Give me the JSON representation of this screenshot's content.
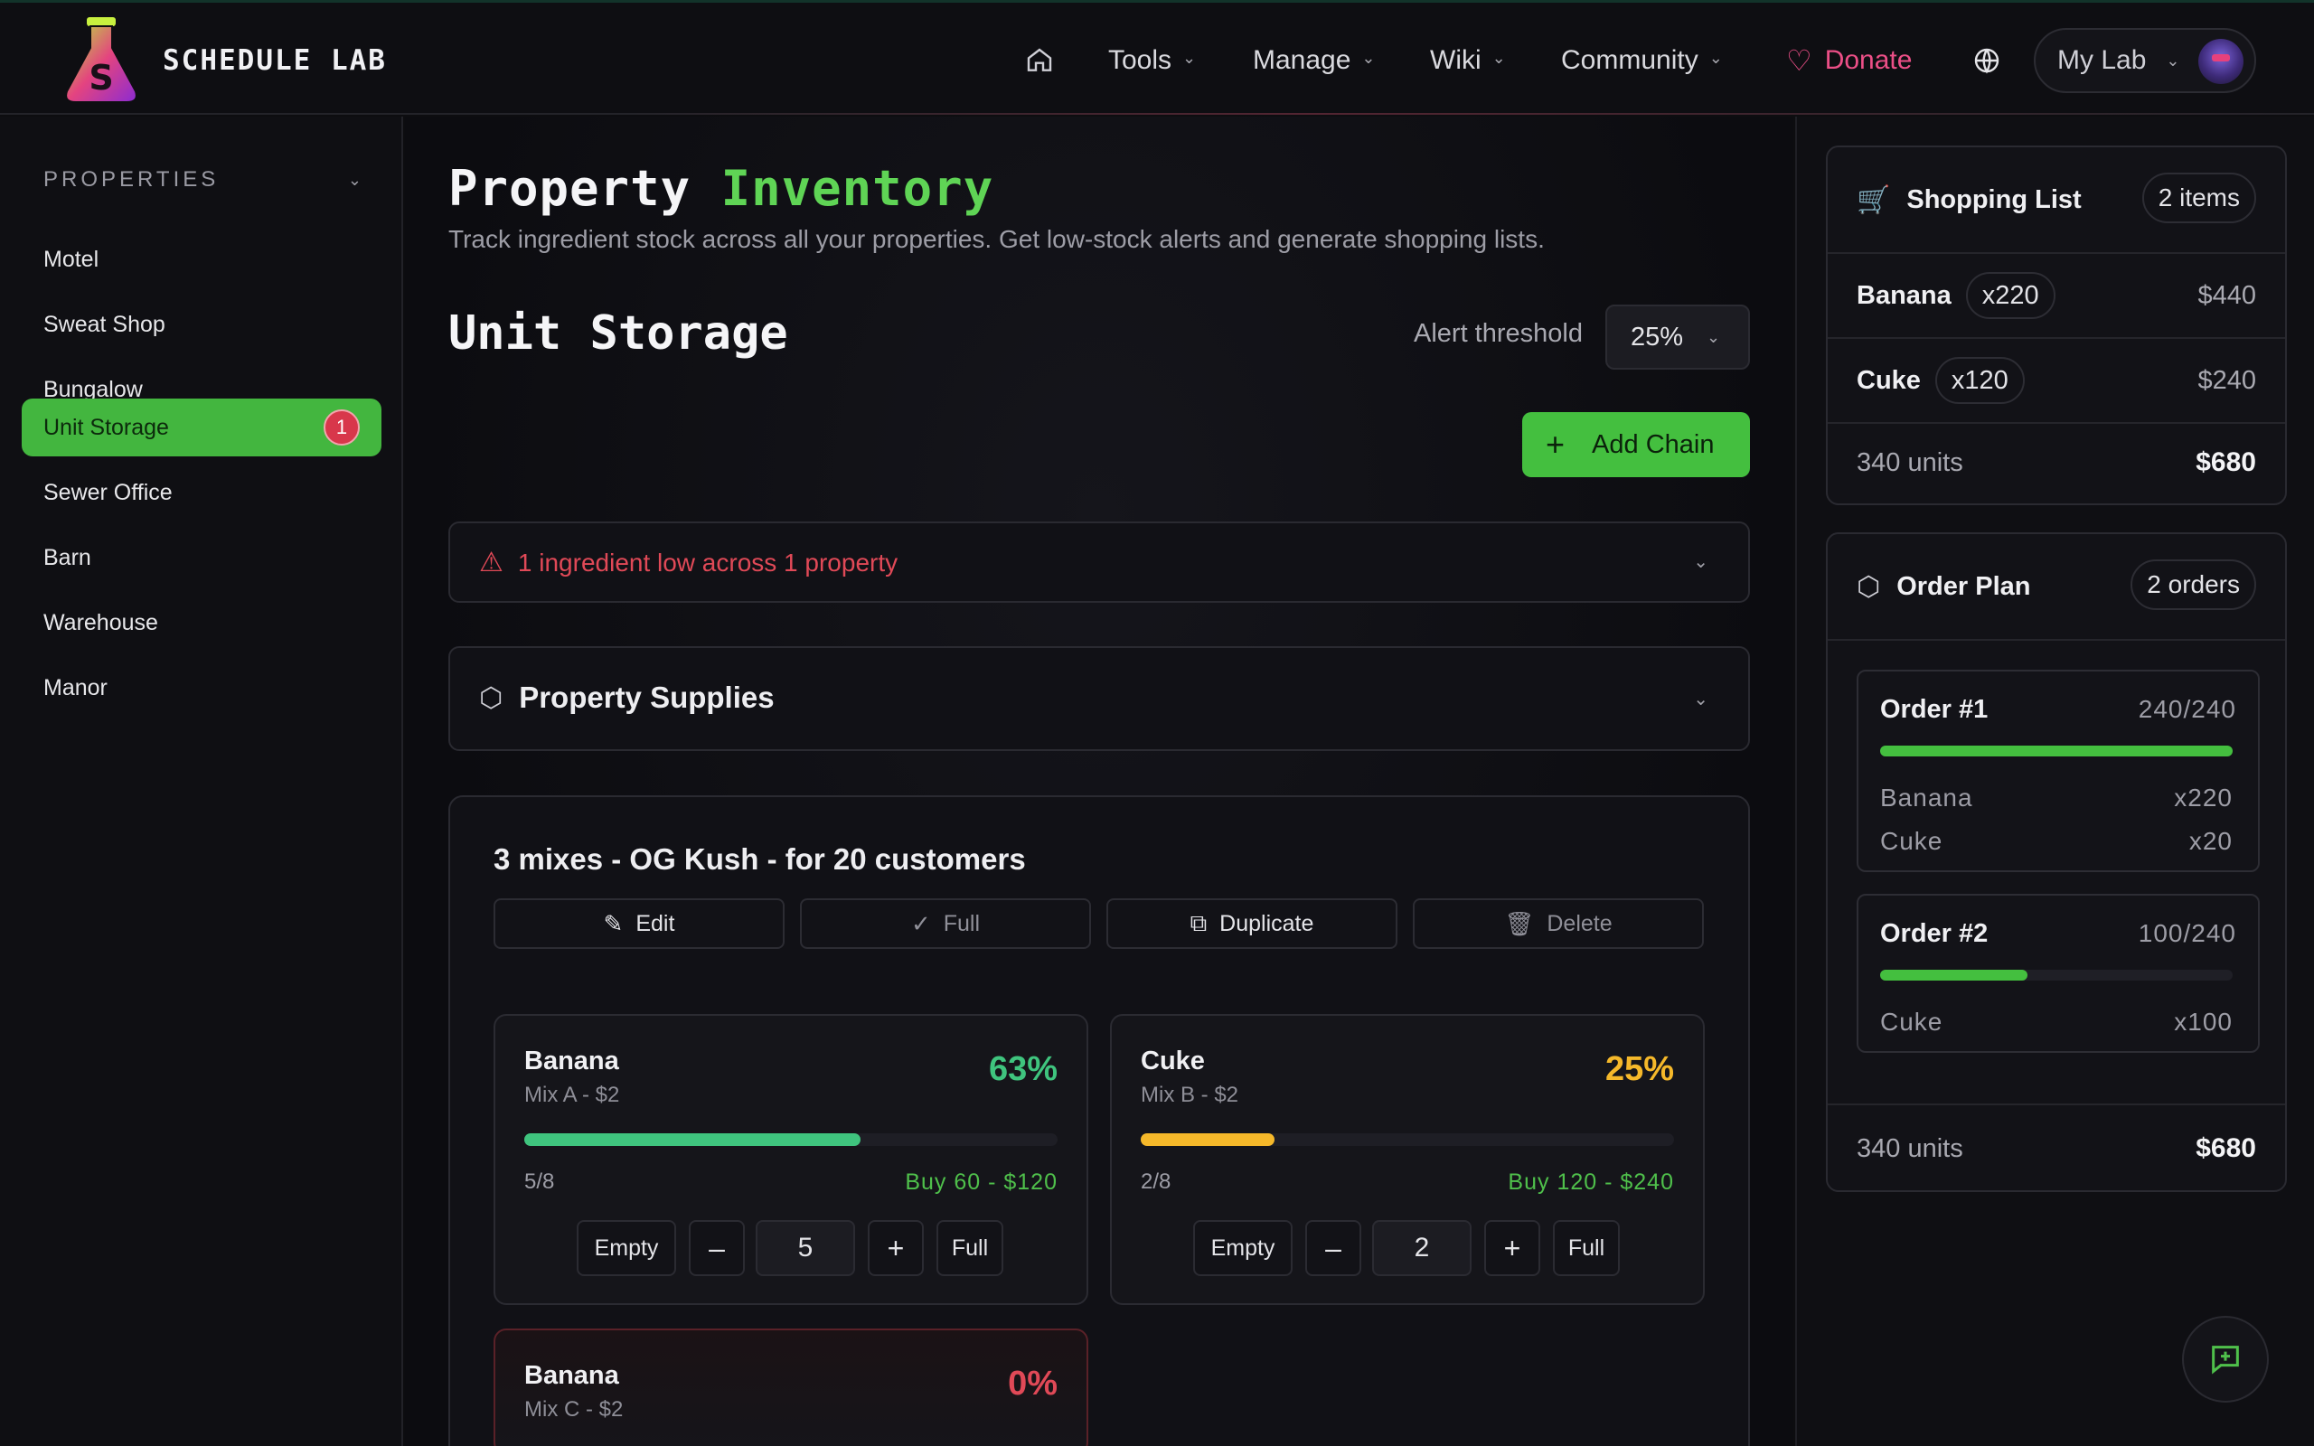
{
  "header": {
    "brand": "SCHEDULE LAB",
    "nav": [
      {
        "label": "Tools"
      },
      {
        "label": "Manage"
      },
      {
        "label": "Wiki"
      },
      {
        "label": "Community"
      }
    ],
    "donate": "Donate",
    "my_lab": "My Lab"
  },
  "sidebar": {
    "heading": "PROPERTIES",
    "items": [
      {
        "label": "Motel"
      },
      {
        "label": "Sweat Shop"
      },
      {
        "label": "Bungalow"
      },
      {
        "label": "Unit Storage",
        "badge": "1",
        "active": true
      },
      {
        "label": "Sewer Office"
      },
      {
        "label": "Barn"
      },
      {
        "label": "Warehouse"
      },
      {
        "label": "Manor"
      }
    ]
  },
  "main": {
    "title_part1": "Property ",
    "title_part2": "Inventory",
    "subtitle": "Track ingredient stock across all your properties. Get low-stock alerts and generate shopping lists.",
    "storage_title": "Unit Storage",
    "alert_threshold_label": "Alert threshold",
    "alert_threshold_value": "25%",
    "add_chain": "Add Chain",
    "alert_text": "1 ingredient low across 1 property",
    "supplies_title": "Property Supplies",
    "mix": {
      "title": "3 mixes - OG Kush - for 20 customers",
      "buttons": {
        "edit": "Edit",
        "full": "Full",
        "duplicate": "Duplicate",
        "delete": "Delete"
      },
      "cards": [
        {
          "name": "Banana",
          "sub": "Mix A - $2",
          "pct": "63%",
          "level": 0.63,
          "count": "5/8",
          "buy": "Buy 60 - $120",
          "value": "5",
          "empty": "Empty",
          "full": "Full",
          "color": "#3fc47e"
        },
        {
          "name": "Cuke",
          "sub": "Mix B - $2",
          "pct": "25%",
          "level": 0.25,
          "count": "2/8",
          "buy": "Buy 120 - $240",
          "value": "2",
          "empty": "Empty",
          "full": "Full",
          "color": "#f5b82a"
        },
        {
          "name": "Banana",
          "sub": "Mix C - $2",
          "pct": "0%",
          "level": 0,
          "color": "#e04957"
        }
      ]
    }
  },
  "shopping_list": {
    "title": "Shopping List",
    "count": "2 items",
    "rows": [
      {
        "name": "Banana",
        "qty": "x220",
        "price": "$440"
      },
      {
        "name": "Cuke",
        "qty": "x120",
        "price": "$240"
      }
    ],
    "units": "340 units",
    "total": "$680"
  },
  "order_plan": {
    "title": "Order Plan",
    "count": "2 orders",
    "orders": [
      {
        "name": "Order #1",
        "capacity": "240/240",
        "fill": 1.0,
        "lines": [
          {
            "item": "Banana",
            "qty": "x220"
          },
          {
            "item": "Cuke",
            "qty": "x20"
          }
        ]
      },
      {
        "name": "Order #2",
        "capacity": "100/240",
        "fill": 0.4167,
        "lines": [
          {
            "item": "Cuke",
            "qty": "x100"
          }
        ]
      }
    ],
    "units": "340 units",
    "total": "$680"
  },
  "colors": {
    "accent": "#44bf3f",
    "danger": "#e04957",
    "warning": "#f5b82a",
    "donate": "#ec4f87"
  },
  "icons": [
    "flask-logo-icon",
    "home-icon",
    "heart-icon",
    "globe-icon",
    "warning-icon",
    "box-icon",
    "pencil-icon",
    "check-circle-icon",
    "copy-icon",
    "trash-icon",
    "cart-icon",
    "chat-plus-icon"
  ]
}
